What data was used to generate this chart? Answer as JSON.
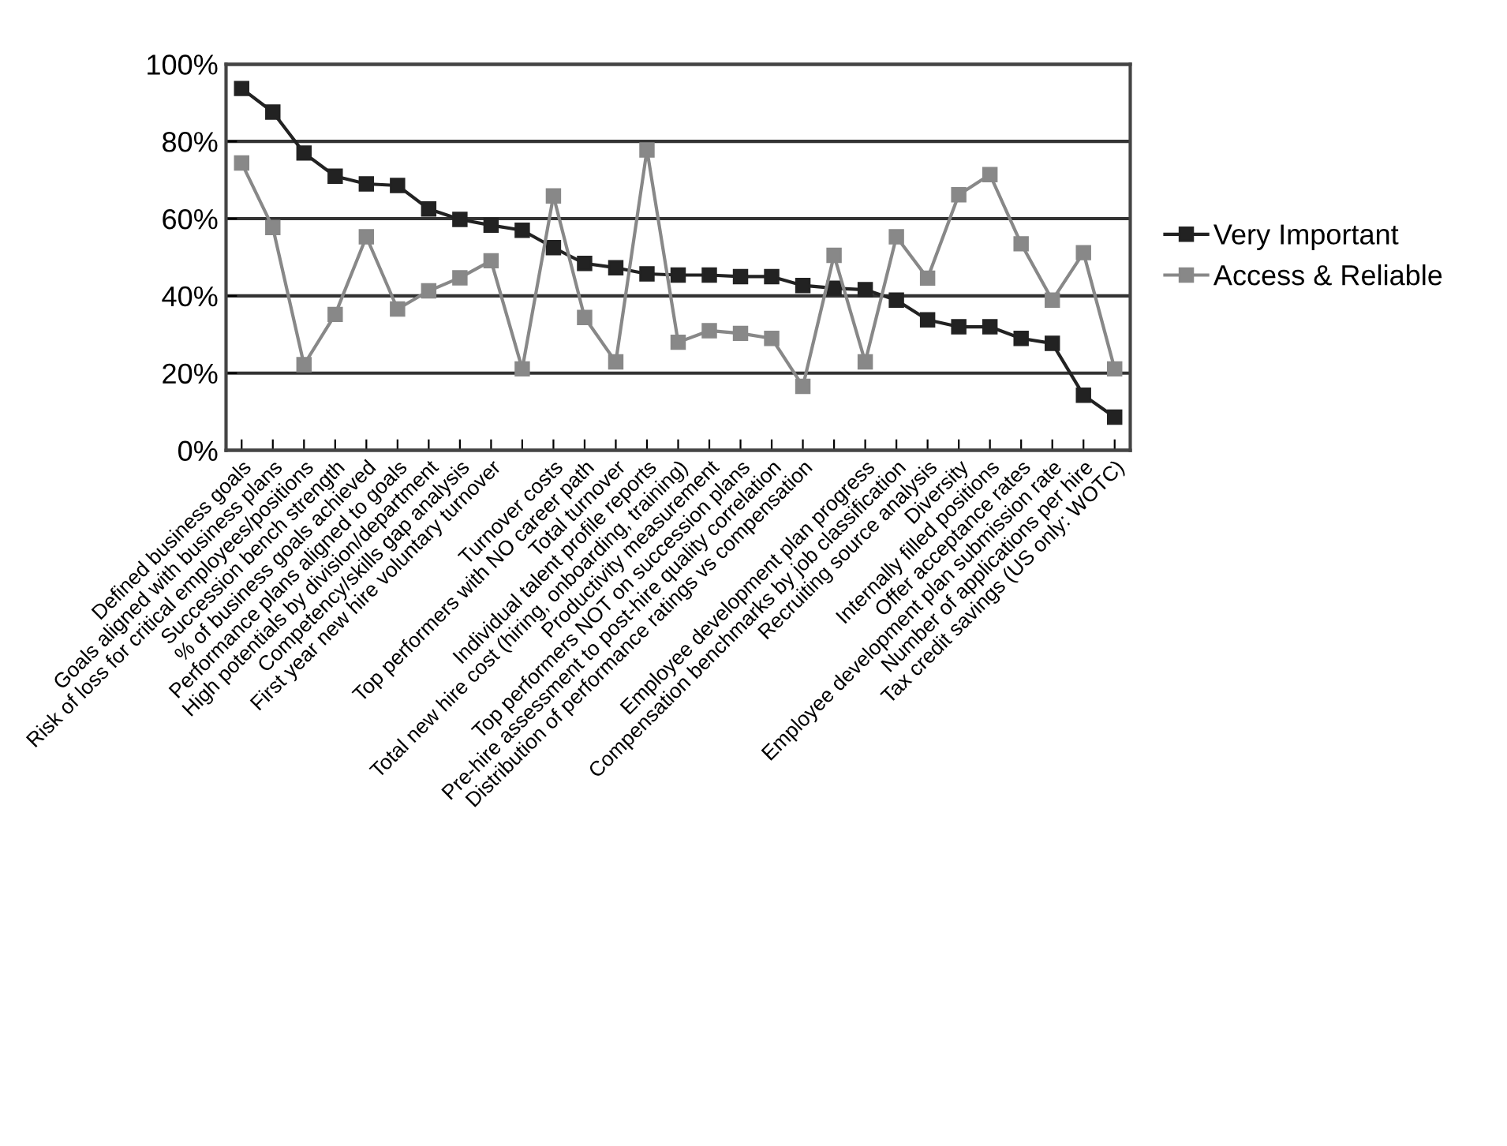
{
  "chart_data": {
    "type": "line",
    "categories": [
      "Defined business goals",
      "Goals aligned with business plans",
      "Risk of loss for critical employees/positions",
      "Succession bench strength",
      "% of business goals achieved",
      "Performance plans aligned to goals",
      "High potentials by division/department",
      "Competency/skills gap analysis",
      "First year new hire voluntary turnover",
      null,
      "Turnover costs",
      "Top performers with NO career path",
      "Total turnover",
      "Individual talent profile reports",
      "Total new hire cost (hiring, onboarding, training)",
      "Productivity measurement",
      "Top performers NOT on succession plans",
      "Pre-hire assessment to post-hire quality correlation",
      "Distribution of performance ratings vs compensation",
      null,
      "Employee development plan progress",
      "Compensation benchmarks by job classification",
      "Recruiting source analysis",
      "Diversity",
      "Internally filled positions",
      "Offer acceptance rates",
      "Employee development plan submission rate",
      "Number of applications per hire",
      "Tax credit savings (US only: WOTC)"
    ],
    "series": [
      {
        "name": "Very Important",
        "color": "#222222",
        "values": [
          93.7,
          87.6,
          77,
          71,
          69,
          68.6,
          62.5,
          59.8,
          58.3,
          57,
          52.5,
          48.4,
          47.3,
          45.7,
          45.4,
          45.4,
          45,
          45,
          42.7,
          42,
          41.6,
          38.9,
          33.8,
          32,
          32,
          29,
          27.7,
          14.3,
          8.6
        ]
      },
      {
        "name": "Access & Reliable",
        "color": "#888888",
        "values": [
          74.4,
          57.7,
          22.2,
          35.2,
          55.3,
          36.6,
          41.3,
          44.7,
          49.1,
          21.1,
          65.9,
          34.4,
          22.9,
          77.8,
          28,
          31,
          30.3,
          29,
          16.6,
          50.5,
          22.9,
          55.3,
          44.6,
          66.2,
          71.4,
          53.5,
          38.9,
          51.2,
          21.1
        ]
      }
    ],
    "ylim": [
      0,
      100
    ],
    "yticks": [
      {
        "value": 0,
        "label": "0%"
      },
      {
        "value": 20,
        "label": "20%"
      },
      {
        "value": 40,
        "label": "40%"
      },
      {
        "value": 60,
        "label": "60%"
      },
      {
        "value": 80,
        "label": "80%"
      },
      {
        "value": 100,
        "label": "100%"
      }
    ],
    "grid": "y",
    "legend": "right",
    "marker": "square",
    "line_style": "solid"
  }
}
